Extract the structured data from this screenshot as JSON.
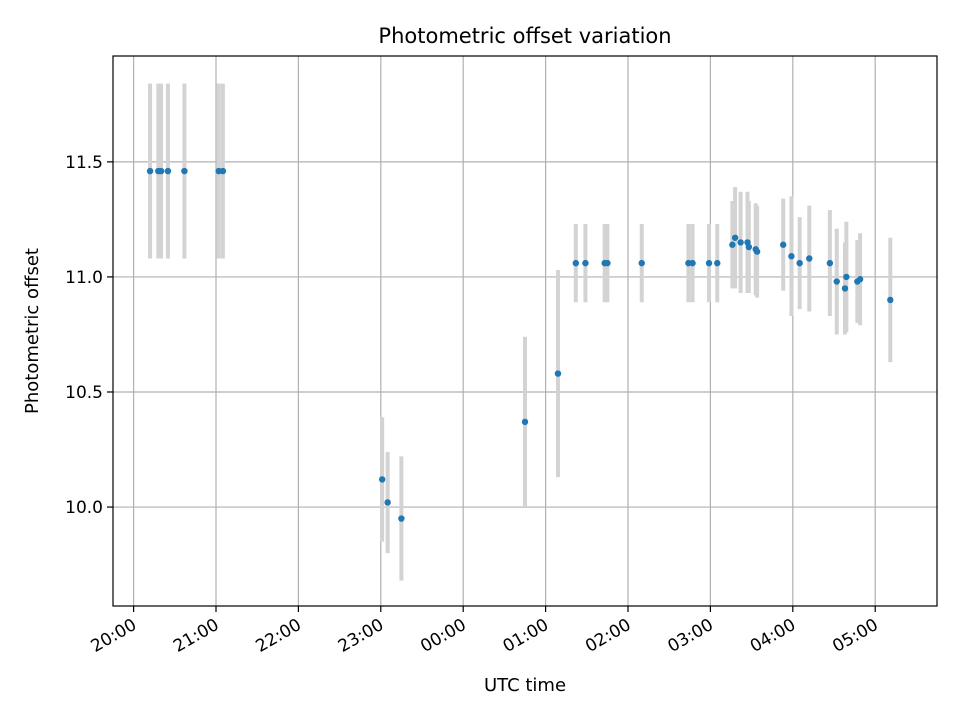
{
  "chart_data": {
    "type": "scatter",
    "title": "Photometric offset variation",
    "xlabel": "UTC time",
    "ylabel": "Photometric offset",
    "x_axis": {
      "kind": "time",
      "start": "20:00",
      "range": [
        "19:45",
        "05:45"
      ],
      "ticks": [
        "20:00",
        "21:00",
        "22:00",
        "23:00",
        "00:00",
        "01:00",
        "02:00",
        "03:00",
        "04:00",
        "05:00"
      ]
    },
    "y_axis": {
      "range": [
        9.57,
        11.96
      ],
      "ticks": [
        "10.0",
        "10.5",
        "11.0",
        "11.5"
      ]
    },
    "grid": true,
    "colors": {
      "point": "#1f77b4",
      "errorbar": "#d3d3d3",
      "grid": "#b0b0b0"
    },
    "series": [
      {
        "points": [
          {
            "x": "20:12",
            "y": 11.46,
            "err": 0.38
          },
          {
            "x": "20:18",
            "y": 11.46,
            "err": 0.38
          },
          {
            "x": "20:20",
            "y": 11.46,
            "err": 0.38
          },
          {
            "x": "20:25",
            "y": 11.46,
            "err": 0.38
          },
          {
            "x": "20:37",
            "y": 11.46,
            "err": 0.38
          },
          {
            "x": "21:02",
            "y": 11.46,
            "err": 0.38
          },
          {
            "x": "21:05",
            "y": 11.46,
            "err": 0.38
          },
          {
            "x": "23:01",
            "y": 10.12,
            "err": 0.27
          },
          {
            "x": "23:05",
            "y": 10.02,
            "err": 0.22
          },
          {
            "x": "23:15",
            "y": 9.95,
            "err": 0.27
          },
          {
            "x": "00:45",
            "y": 10.37,
            "err": 0.37
          },
          {
            "x": "01:09",
            "y": 10.58,
            "err": 0.45
          },
          {
            "x": "01:22",
            "y": 11.06,
            "err": 0.17
          },
          {
            "x": "01:29",
            "y": 11.06,
            "err": 0.17
          },
          {
            "x": "01:43",
            "y": 11.06,
            "err": 0.17
          },
          {
            "x": "01:45",
            "y": 11.06,
            "err": 0.17
          },
          {
            "x": "02:10",
            "y": 11.06,
            "err": 0.17
          },
          {
            "x": "02:44",
            "y": 11.06,
            "err": 0.17
          },
          {
            "x": "02:47",
            "y": 11.06,
            "err": 0.17
          },
          {
            "x": "02:59",
            "y": 11.06,
            "err": 0.17
          },
          {
            "x": "03:05",
            "y": 11.06,
            "err": 0.17
          },
          {
            "x": "03:16",
            "y": 11.14,
            "err": 0.19
          },
          {
            "x": "03:18",
            "y": 11.17,
            "err": 0.22
          },
          {
            "x": "03:22",
            "y": 11.15,
            "err": 0.22
          },
          {
            "x": "03:27",
            "y": 11.15,
            "err": 0.22
          },
          {
            "x": "03:28",
            "y": 11.13,
            "err": 0.2
          },
          {
            "x": "03:33",
            "y": 11.12,
            "err": 0.2
          },
          {
            "x": "03:34",
            "y": 11.11,
            "err": 0.2
          },
          {
            "x": "03:53",
            "y": 11.14,
            "err": 0.2
          },
          {
            "x": "03:59",
            "y": 11.09,
            "err": 0.26
          },
          {
            "x": "04:05",
            "y": 11.06,
            "err": 0.2
          },
          {
            "x": "04:12",
            "y": 11.08,
            "err": 0.23
          },
          {
            "x": "04:27",
            "y": 11.06,
            "err": 0.23
          },
          {
            "x": "04:32",
            "y": 10.98,
            "err": 0.23
          },
          {
            "x": "04:38",
            "y": 10.95,
            "err": 0.2
          },
          {
            "x": "04:39",
            "y": 11.0,
            "err": 0.24
          },
          {
            "x": "04:47",
            "y": 10.98,
            "err": 0.18
          },
          {
            "x": "04:49",
            "y": 10.99,
            "err": 0.2
          },
          {
            "x": "05:11",
            "y": 10.9,
            "err": 0.27
          }
        ]
      }
    ]
  }
}
